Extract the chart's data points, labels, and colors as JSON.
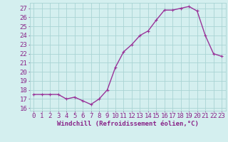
{
  "x": [
    0,
    1,
    2,
    3,
    4,
    5,
    6,
    7,
    8,
    9,
    10,
    11,
    12,
    13,
    14,
    15,
    16,
    17,
    18,
    19,
    20,
    21,
    22,
    23
  ],
  "y": [
    17.5,
    17.5,
    17.5,
    17.5,
    17.0,
    17.2,
    16.8,
    16.4,
    17.0,
    18.0,
    20.5,
    22.2,
    23.0,
    24.0,
    24.5,
    25.7,
    26.8,
    26.8,
    27.0,
    27.2,
    26.7,
    24.0,
    22.0,
    21.7
  ],
  "line_color": "#993399",
  "marker": "+",
  "markersize": 3,
  "linewidth": 1.0,
  "bg_color": "#d4efef",
  "grid_color": "#aad4d4",
  "xlabel": "Windchill (Refroidissement éolien,°C)",
  "xlabel_fontsize": 6.5,
  "ylabel_ticks": [
    16,
    17,
    18,
    19,
    20,
    21,
    22,
    23,
    24,
    25,
    26,
    27
  ],
  "xlim": [
    -0.5,
    23.5
  ],
  "ylim": [
    15.7,
    27.6
  ],
  "tick_fontsize": 6.5,
  "axis_color": "#882288"
}
